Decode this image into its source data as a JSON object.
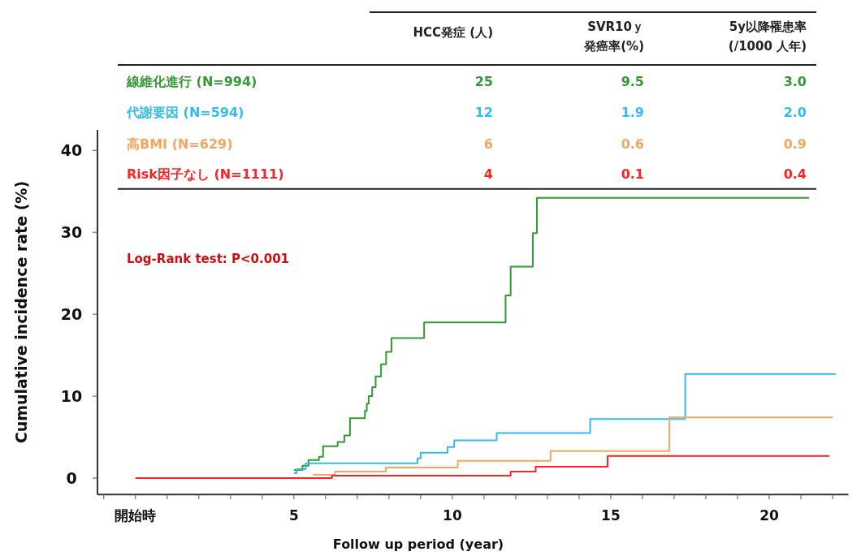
{
  "chart_data": {
    "type": "step",
    "xlabel": "Follow up period (year)",
    "ylabel": "Cumulative incidence rate (%)",
    "xlim": [
      -1.2,
      22.5
    ],
    "ylim": [
      -2,
      42.5
    ],
    "xticks": [
      {
        "value": -1,
        "label": null
      },
      {
        "value": 0,
        "label": "開始時"
      },
      {
        "value": 1,
        "label": null
      },
      {
        "value": 2,
        "label": null
      },
      {
        "value": 3,
        "label": null
      },
      {
        "value": 4,
        "label": null
      },
      5,
      {
        "value": 6,
        "label": null
      },
      {
        "value": 7,
        "label": null
      },
      {
        "value": 8,
        "label": null
      },
      {
        "value": 9,
        "label": null
      },
      10,
      {
        "value": 11,
        "label": null
      },
      {
        "value": 12,
        "label": null
      },
      {
        "value": 13,
        "label": null
      },
      {
        "value": 14,
        "label": null
      },
      15,
      {
        "value": 16,
        "label": null
      },
      {
        "value": 17,
        "label": null
      },
      {
        "value": 18,
        "label": null
      },
      {
        "value": 19,
        "label": null
      },
      20,
      {
        "value": 21,
        "label": null
      },
      {
        "value": 22,
        "label": null
      }
    ],
    "yticks": [
      0,
      10,
      20,
      30,
      40
    ],
    "ref_lines": [
      {
        "axis": "y",
        "value": 35.3,
        "color": "#222222",
        "line_style": "solid"
      }
    ],
    "grid": false,
    "legend": "top left",
    "marker": "none",
    "line_style": "solid",
    "series": [
      {
        "name": "線維化進行 (N=994)",
        "color": "#339933",
        "x": [
          5.0,
          5.27,
          5.46,
          5.79,
          5.92,
          6.38,
          6.59,
          6.77,
          7.24,
          7.3,
          7.36,
          7.47,
          7.58,
          7.75,
          7.91,
          8.08,
          9.11,
          11.68,
          11.84,
          12.54,
          12.67,
          21.26
        ],
        "values": [
          1.0,
          1.5,
          2.2,
          2.6,
          3.9,
          4.4,
          5.2,
          7.3,
          8.2,
          9.1,
          10.0,
          11.1,
          12.4,
          13.9,
          15.4,
          17.1,
          19.0,
          22.3,
          25.8,
          29.9,
          34.2,
          34.2
        ]
      },
      {
        "name": "代謝要因 (N=594)",
        "color": "#33bbee",
        "x": [
          5.0,
          5.08,
          5.37,
          8.9,
          9.0,
          9.85,
          10.06,
          11.4,
          14.35,
          17.35,
          22.1
        ],
        "values": [
          0.6,
          1.1,
          1.8,
          2.4,
          3.1,
          3.8,
          4.6,
          5.5,
          7.2,
          12.7,
          12.7
        ]
      },
      {
        "name": "高BMI (N=629)",
        "color": "#f5a560",
        "x": [
          5.6,
          6.3,
          7.9,
          10.17,
          13.1,
          16.85,
          22.0
        ],
        "values": [
          0.4,
          0.8,
          1.3,
          2.1,
          3.3,
          7.4,
          7.4
        ]
      },
      {
        "name": "Risk因子なし (N=1111)",
        "color": "#ff2222",
        "x": [
          0,
          6.2,
          11.84,
          12.63,
          14.9,
          21.9
        ],
        "values": [
          0,
          0.3,
          0.8,
          1.4,
          2.7,
          2.7
        ]
      }
    ],
    "annotations": [
      "HCC発症 (人)",
      "SVR10ｙ",
      "発癌率(%)",
      "5y以降罹患率",
      "(/1000 人年)",
      "25",
      "9.5",
      "3.0",
      "12",
      "1.9",
      "2.0",
      "6",
      "0.6",
      "0.9",
      "4",
      "0.1",
      "0.4",
      "Log-Rank test: P<0.001"
    ]
  }
}
